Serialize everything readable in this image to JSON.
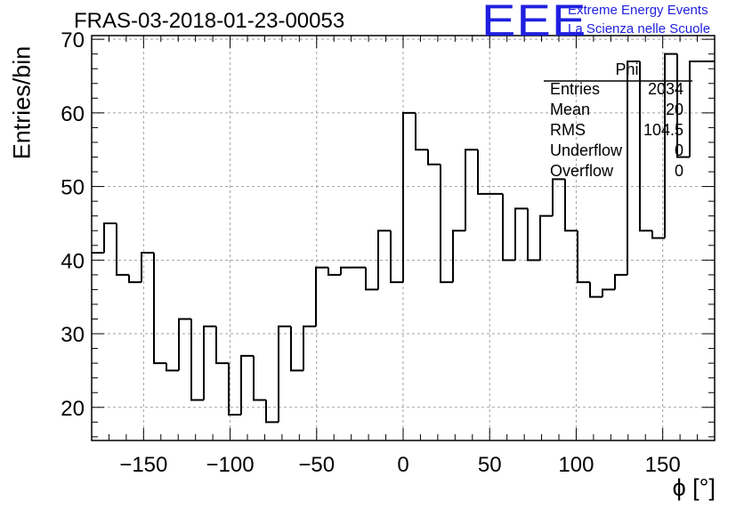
{
  "chart_data": {
    "type": "bar",
    "style": "step-histogram",
    "title": "FRAS-03-2018-01-23-00053",
    "xlabel": "ϕ [°]",
    "ylabel": "Entries/bin",
    "xlim": [
      -180,
      180
    ],
    "ylim": [
      15.5,
      70.5
    ],
    "xticks": [
      -150,
      -100,
      -50,
      0,
      50,
      100,
      150
    ],
    "yticks": [
      20,
      30,
      40,
      50,
      60,
      70
    ],
    "grid": true,
    "bin_edges_start": -180,
    "bin_width": 7.2,
    "values": [
      41,
      45,
      38,
      37,
      41,
      26,
      25,
      32,
      21,
      31,
      26,
      19,
      27,
      21,
      18,
      31,
      25,
      31,
      39,
      38,
      39,
      39,
      36,
      44,
      37,
      60,
      55,
      53,
      37,
      44,
      55,
      49,
      49,
      40,
      47,
      40,
      46,
      51,
      44,
      37,
      35,
      36,
      38,
      67,
      44,
      43,
      68,
      54,
      67,
      67
    ],
    "stats_box": {
      "title": "Phi",
      "rows": [
        {
          "label": "Entries",
          "value": "2034"
        },
        {
          "label": "Mean",
          "value": "20"
        },
        {
          "label": "RMS",
          "value": "104.5"
        },
        {
          "label": "Underflow",
          "value": "0"
        },
        {
          "label": "Overflow",
          "value": "0"
        }
      ]
    }
  },
  "logo": {
    "letters": "EEE",
    "line1": "Extreme Energy Events",
    "line2": "La Scienza nelle Scuole",
    "color": "#1f1fe0"
  }
}
